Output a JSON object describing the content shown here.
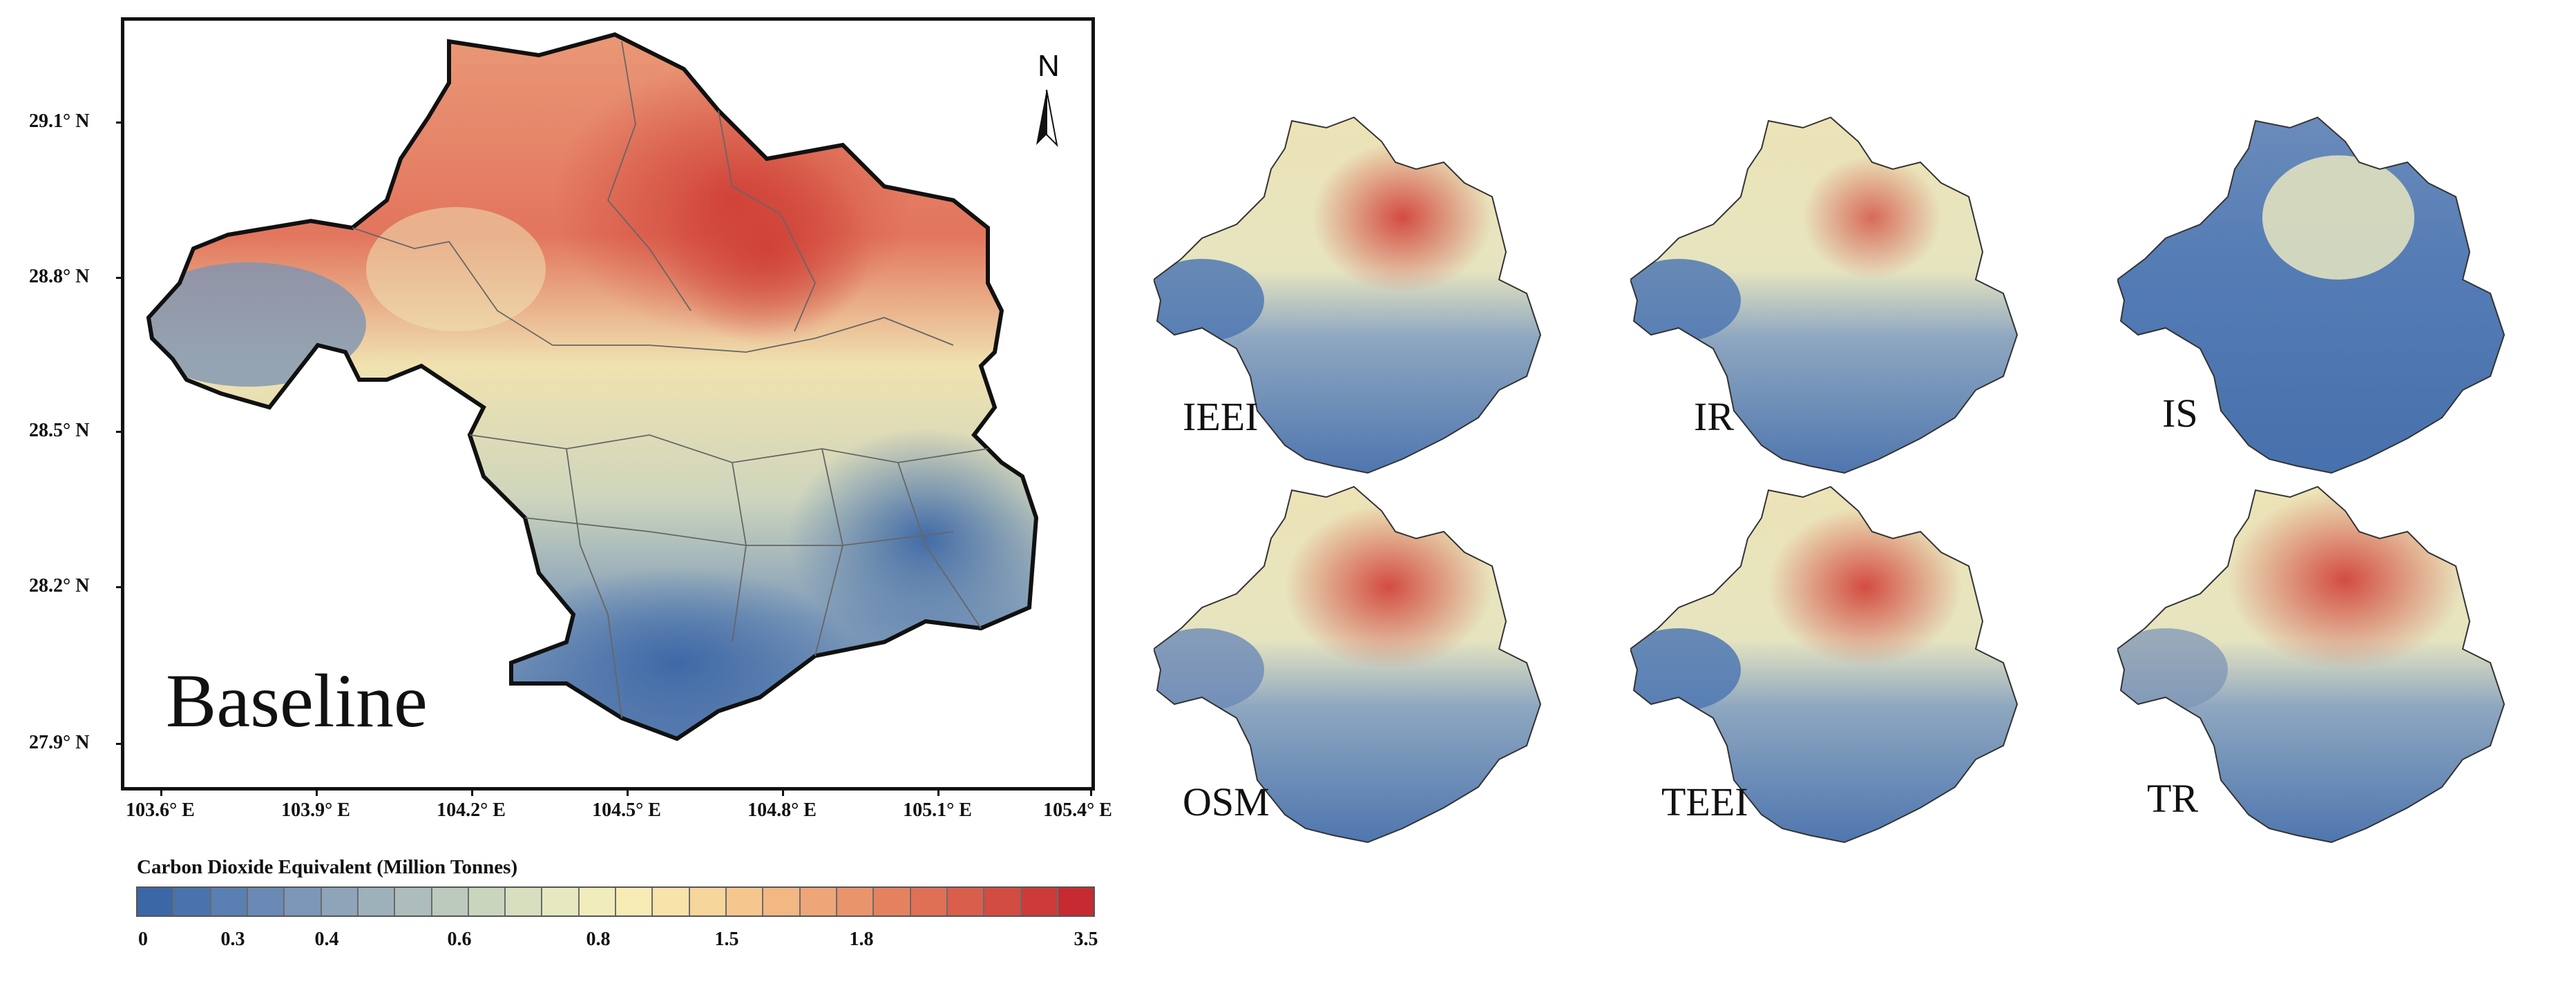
{
  "main_map": {
    "label": "Baseline",
    "north_label": "N",
    "lat_ticks": [
      "29.1° N",
      "28.8° N",
      "28.5° N",
      "28.2° N",
      "27.9° N"
    ],
    "lon_ticks": [
      "103.6° E",
      "103.9° E",
      "104.2° E",
      "104.5° E",
      "104.8° E",
      "105.1° E",
      "105.4° E"
    ]
  },
  "scenarios": [
    {
      "label": "IEEI"
    },
    {
      "label": "IR"
    },
    {
      "label": "IS"
    },
    {
      "label": "OSM"
    },
    {
      "label": "TEEI"
    },
    {
      "label": "TR"
    }
  ],
  "legend": {
    "title": "Carbon Dioxide Equivalent (Million Tonnes)",
    "tick_labels": [
      "0",
      "0.3",
      "0.4",
      "0.6",
      "0.8",
      "1.5",
      "1.8",
      "3.5"
    ],
    "colors": [
      "#3c67a6",
      "#4a72ad",
      "#5a7fb2",
      "#6a8ab5",
      "#7c97b7",
      "#8ea4b9",
      "#9db1bb",
      "#adbdbc",
      "#bccabe",
      "#cad5be",
      "#d8dfbe",
      "#e6e8bf",
      "#f0ecbc",
      "#f7ecb6",
      "#f8e3aa",
      "#f7d69c",
      "#f5c78e",
      "#f2b783",
      "#eea678",
      "#ea946c",
      "#e48260",
      "#df7055",
      "#d95e4c",
      "#d34c42",
      "#cc3a39",
      "#c52b31"
    ],
    "colors_note": "blue-to-red diverging ramp"
  }
}
